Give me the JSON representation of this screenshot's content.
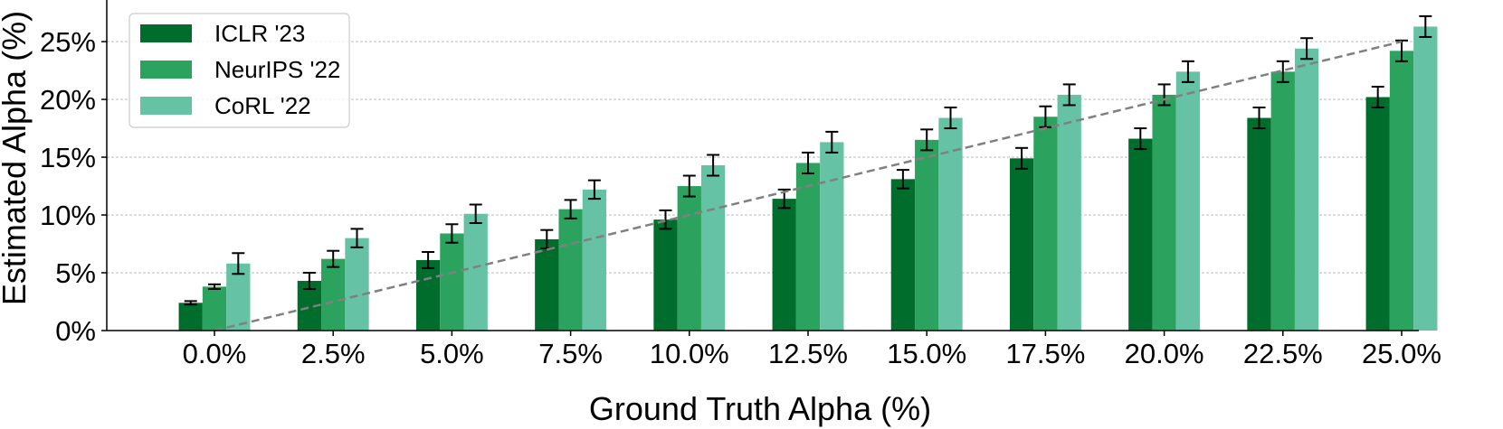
{
  "chart_data": {
    "type": "bar",
    "xlabel": "Ground Truth Alpha (%)",
    "ylabel": "Estimated Alpha (%)",
    "categories": [
      "0.0%",
      "2.5%",
      "5.0%",
      "7.5%",
      "10.0%",
      "12.5%",
      "15.0%",
      "17.5%",
      "20.0%",
      "22.5%",
      "25.0%"
    ],
    "x_values": [
      0,
      2.5,
      5,
      7.5,
      10,
      12.5,
      15,
      17.5,
      20,
      22.5,
      25
    ],
    "yticks": [
      0,
      5,
      10,
      15,
      20,
      25
    ],
    "ytick_labels": [
      "0%",
      "5%",
      "10%",
      "15%",
      "20%",
      "25%"
    ],
    "ylim": [
      0,
      28.6
    ],
    "grid": "horizontal dashed",
    "legend_position": "top-left",
    "series": [
      {
        "name": "ICLR '23",
        "color": "#006d2c",
        "values": [
          2.4,
          4.3,
          6.1,
          7.9,
          9.6,
          11.4,
          13.1,
          14.9,
          16.6,
          18.4,
          20.2
        ],
        "errors": [
          0.15,
          0.7,
          0.7,
          0.8,
          0.8,
          0.8,
          0.8,
          0.9,
          0.9,
          0.9,
          0.9
        ]
      },
      {
        "name": "NeurIPS '22",
        "color": "#2ca25f",
        "values": [
          3.8,
          6.2,
          8.4,
          10.5,
          12.5,
          14.5,
          16.5,
          18.5,
          20.4,
          22.4,
          24.2
        ],
        "errors": [
          0.2,
          0.7,
          0.8,
          0.8,
          0.9,
          0.9,
          0.9,
          0.9,
          0.9,
          0.9,
          0.9
        ]
      },
      {
        "name": "CoRL '22",
        "color": "#66c2a4",
        "values": [
          5.8,
          8.0,
          10.1,
          12.2,
          14.3,
          16.3,
          18.4,
          20.4,
          22.4,
          24.4,
          26.3
        ],
        "errors": [
          0.9,
          0.8,
          0.8,
          0.8,
          0.9,
          0.9,
          0.9,
          0.9,
          0.9,
          0.9,
          0.9
        ]
      }
    ],
    "reference_line": {
      "from": [
        0,
        0
      ],
      "to": [
        25,
        25
      ],
      "style": "dashed",
      "color": "#808080"
    }
  }
}
